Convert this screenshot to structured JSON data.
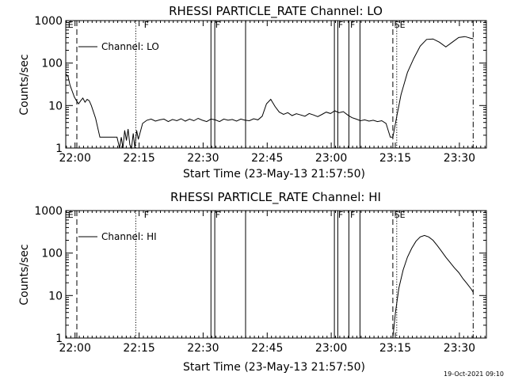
{
  "footer_timestamp": "19-Oct-2021 09:10",
  "chart_data": [
    {
      "type": "line",
      "title": "RHESSI PARTICLE_RATE Channel: LO",
      "xlabel": "Start Time (23-May-13 21:57:50)",
      "ylabel": "Counts/sec",
      "y_scale": "log",
      "ylim": [
        1,
        1000
      ],
      "xlim_minutes": [
        0,
        98.5
      ],
      "x_ticks": [
        {
          "label": "22:00",
          "min": 2.17
        },
        {
          "label": "22:15",
          "min": 17.17
        },
        {
          "label": "22:30",
          "min": 32.17
        },
        {
          "label": "22:45",
          "min": 47.17
        },
        {
          "label": "23:00",
          "min": 62.17
        },
        {
          "label": "23:15",
          "min": 77.17
        },
        {
          "label": "23:30",
          "min": 92.17
        }
      ],
      "y_ticks": [
        {
          "label": "1",
          "v": 1
        },
        {
          "label": "10",
          "v": 10
        },
        {
          "label": "100",
          "v": 100
        },
        {
          "label": "1000",
          "v": 1000
        }
      ],
      "legend": {
        "label": "Channel: LO",
        "position": "top-left"
      },
      "flag_labels": [
        {
          "text": "E",
          "min": 0.5
        },
        {
          "text": "F",
          "min": 18.3
        },
        {
          "text": "F",
          "min": 35.0
        },
        {
          "text": "F",
          "min": 63.8
        },
        {
          "text": "F",
          "min": 66.6
        },
        {
          "text": "SE",
          "min": 76.9
        }
      ],
      "markers": [
        {
          "min": 2.6,
          "style": "dashed"
        },
        {
          "min": 16.4,
          "style": "dotted"
        },
        {
          "min": 34.0,
          "style": "solid"
        },
        {
          "min": 34.9,
          "style": "solid"
        },
        {
          "min": 42.1,
          "style": "solid"
        },
        {
          "min": 62.9,
          "style": "solid"
        },
        {
          "min": 63.7,
          "style": "solid"
        },
        {
          "min": 66.3,
          "style": "solid"
        },
        {
          "min": 68.9,
          "style": "solid"
        },
        {
          "min": 76.6,
          "style": "dashed"
        },
        {
          "min": 77.5,
          "style": "dotted"
        },
        {
          "min": 95.4,
          "style": "dashdot"
        }
      ],
      "series": [
        {
          "name": "Channel: LO",
          "x_minutes": [
            0,
            0.5,
            1,
            1.5,
            2,
            2.5,
            3,
            3.5,
            4,
            4.5,
            5,
            5.5,
            6,
            7,
            8,
            9,
            10,
            11,
            12,
            12.6,
            13,
            13.4,
            13.8,
            14.2,
            14.6,
            15,
            15.4,
            15.8,
            16.2,
            16.6,
            17,
            18,
            19,
            20,
            21,
            22,
            23,
            24,
            25,
            26,
            27,
            28,
            29,
            30,
            31,
            32,
            33,
            34,
            35,
            36,
            37,
            38,
            39,
            40,
            41,
            42,
            43,
            44,
            45,
            46,
            47,
            48,
            49,
            50,
            51,
            52,
            53,
            54,
            55,
            56,
            57,
            58,
            59,
            60,
            61,
            62,
            63,
            64,
            65,
            66,
            67,
            68,
            69,
            70,
            71,
            72,
            73,
            74,
            75,
            76,
            76.6,
            77.5,
            78.5,
            80,
            81.5,
            83,
            84.5,
            86,
            87.5,
            89,
            90.5,
            92,
            93.5,
            95,
            95.4
          ],
          "values": [
            55,
            50,
            30,
            22,
            16,
            13,
            11,
            13,
            15,
            12,
            14,
            13,
            10,
            5,
            1.8,
            1.8,
            1.8,
            1.8,
            1.8,
            1.0,
            1.8,
            1.0,
            2.6,
            1.5,
            2.8,
            1.2,
            1.0,
            2.2,
            1.0,
            2.6,
            1.6,
            3.8,
            4.5,
            4.8,
            4.3,
            4.6,
            4.8,
            4.2,
            4.7,
            4.4,
            4.9,
            4.3,
            4.8,
            4.4,
            5.0,
            4.5,
            4.2,
            4.8,
            4.6,
            4.2,
            4.8,
            4.5,
            4.7,
            4.3,
            4.8,
            4.5,
            4.4,
            4.9,
            4.6,
            5.6,
            11,
            14,
            9.5,
            7.0,
            6.2,
            6.8,
            5.8,
            6.4,
            6.0,
            5.6,
            6.5,
            6.0,
            5.5,
            6.2,
            7.0,
            6.5,
            7.5,
            6.8,
            7.2,
            6.0,
            5.2,
            4.8,
            4.4,
            4.6,
            4.3,
            4.5,
            4.2,
            4.4,
            3.8,
            1.8,
            1.8,
            5.5,
            18,
            60,
            130,
            250,
            360,
            370,
            310,
            240,
            310,
            400,
            420,
            380,
            380
          ]
        }
      ]
    },
    {
      "type": "line",
      "title": "RHESSI PARTICLE_RATE Channel: HI",
      "xlabel": "Start Time (23-May-13 21:57:50)",
      "ylabel": "Counts/sec",
      "y_scale": "log",
      "ylim": [
        1,
        1000
      ],
      "xlim_minutes": [
        0,
        98.5
      ],
      "x_ticks": [
        {
          "label": "22:00",
          "min": 2.17
        },
        {
          "label": "22:15",
          "min": 17.17
        },
        {
          "label": "22:30",
          "min": 32.17
        },
        {
          "label": "22:45",
          "min": 47.17
        },
        {
          "label": "23:00",
          "min": 62.17
        },
        {
          "label": "23:15",
          "min": 77.17
        },
        {
          "label": "23:30",
          "min": 92.17
        }
      ],
      "y_ticks": [
        {
          "label": "1",
          "v": 1
        },
        {
          "label": "10",
          "v": 10
        },
        {
          "label": "100",
          "v": 100
        },
        {
          "label": "1000",
          "v": 1000
        }
      ],
      "legend": {
        "label": "Channel: HI",
        "position": "top-left"
      },
      "flag_labels": [
        {
          "text": "E",
          "min": 0.5
        },
        {
          "text": "F",
          "min": 18.3
        },
        {
          "text": "F",
          "min": 35.0
        },
        {
          "text": "F",
          "min": 63.8
        },
        {
          "text": "F",
          "min": 66.6
        },
        {
          "text": "SE",
          "min": 76.9
        }
      ],
      "markers": [
        {
          "min": 2.6,
          "style": "dashed"
        },
        {
          "min": 16.4,
          "style": "dotted"
        },
        {
          "min": 34.0,
          "style": "solid"
        },
        {
          "min": 34.9,
          "style": "solid"
        },
        {
          "min": 42.1,
          "style": "solid"
        },
        {
          "min": 62.9,
          "style": "solid"
        },
        {
          "min": 63.7,
          "style": "solid"
        },
        {
          "min": 66.3,
          "style": "solid"
        },
        {
          "min": 68.9,
          "style": "solid"
        },
        {
          "min": 76.6,
          "style": "dashed"
        },
        {
          "min": 77.5,
          "style": "dotted"
        },
        {
          "min": 95.4,
          "style": "dashdot"
        }
      ],
      "series": [
        {
          "name": "Channel: HI",
          "x_minutes": [
            76.6,
            77.2,
            78,
            79,
            80,
            81,
            82,
            83,
            84,
            85,
            86,
            87,
            88,
            89,
            90,
            91,
            92,
            93,
            94,
            95,
            95.4
          ],
          "values": [
            1.0,
            4,
            15,
            40,
            80,
            130,
            190,
            240,
            260,
            240,
            200,
            150,
            110,
            80,
            60,
            45,
            35,
            25,
            19,
            14,
            12
          ]
        }
      ]
    }
  ]
}
